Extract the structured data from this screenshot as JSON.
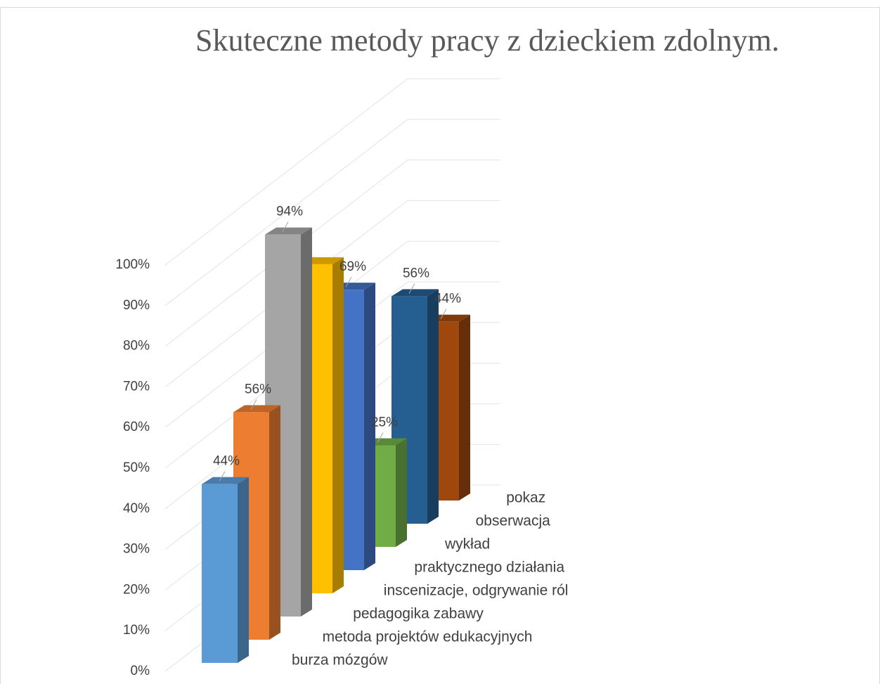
{
  "chart_data": {
    "type": "bar3d",
    "title": "Skuteczne metody pracy z dzieckiem zdolnym.",
    "categories": [
      "burza mózgów",
      "metoda projektów edukacyjnych",
      "pedagogika zabawy",
      "inscenizacje, odgrywanie ról",
      "praktycznego działania",
      "wykład",
      "obserwacja",
      "pokaz"
    ],
    "values": [
      44,
      56,
      94,
      81,
      69,
      25,
      56,
      44
    ],
    "value_labels": [
      "44%",
      "56%",
      "94%",
      null,
      "69%",
      "25%",
      "56%",
      "44%"
    ],
    "colors": [
      "#5b9bd5",
      "#ed7d31",
      "#a5a5a5",
      "#ffc000",
      "#4472c4",
      "#70ad47",
      "#255e91",
      "#9e480e"
    ],
    "ylim": [
      0,
      100
    ],
    "yticks": [
      {
        "value": 0,
        "label": "0%"
      },
      {
        "value": 10,
        "label": "10%"
      },
      {
        "value": 20,
        "label": "20%"
      },
      {
        "value": 30,
        "label": "30%"
      },
      {
        "value": 40,
        "label": "40%"
      },
      {
        "value": 50,
        "label": "50%"
      },
      {
        "value": 60,
        "label": "60%"
      },
      {
        "value": 70,
        "label": "70%"
      },
      {
        "value": 80,
        "label": "80%"
      },
      {
        "value": 90,
        "label": "90%"
      },
      {
        "value": 100,
        "label": "100%"
      }
    ],
    "grid": true
  }
}
